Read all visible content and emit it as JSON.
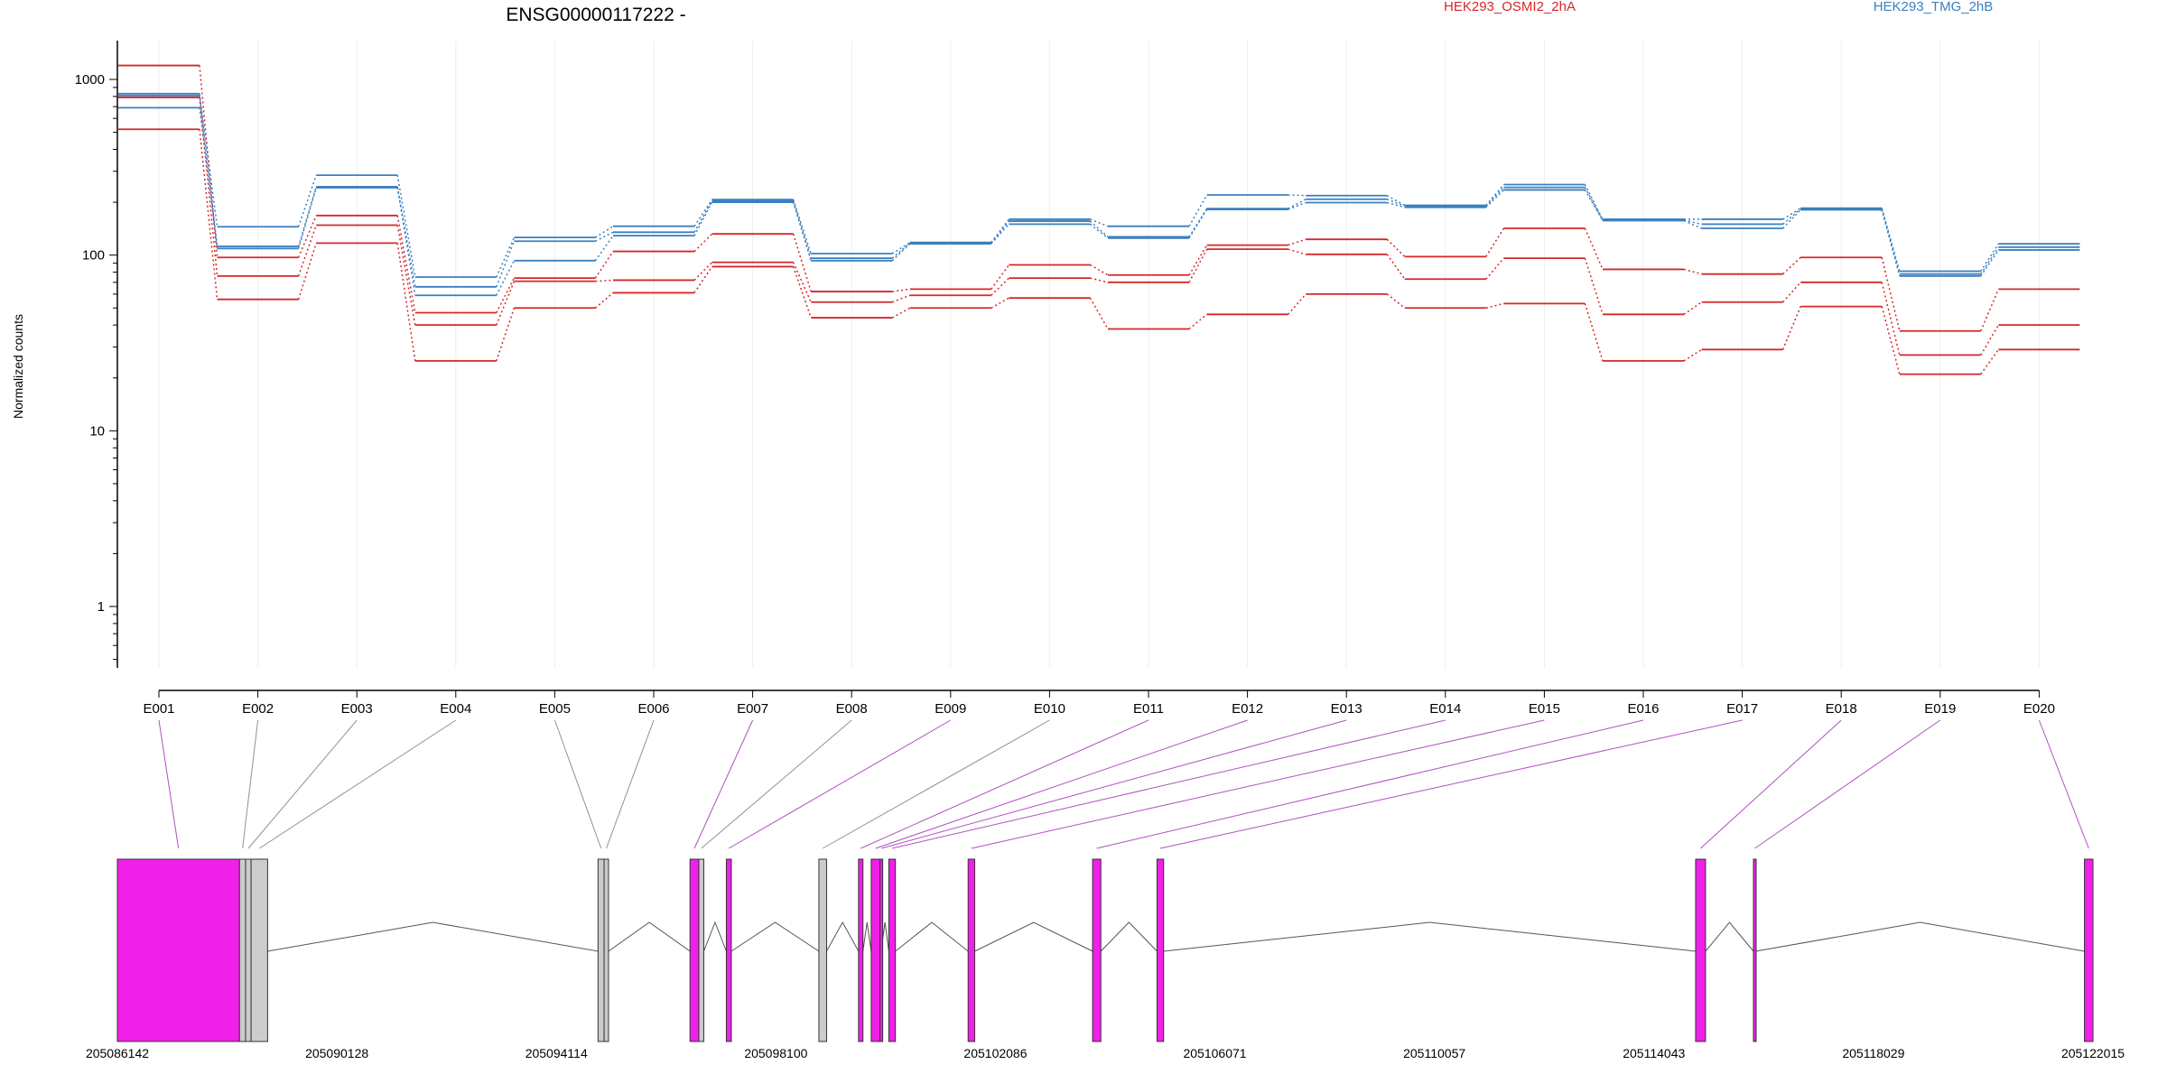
{
  "chart_data": {
    "type": "line",
    "title": "ENSG00000117222 -",
    "ylabel": "Normalized counts",
    "xlabel": "",
    "yscale": "log",
    "yticks": [
      1,
      10,
      100,
      1000
    ],
    "ylim": [
      0.5,
      1600
    ],
    "grid": "vertical-only",
    "legend_position": "top",
    "categories": [
      "E001",
      "E002",
      "E003",
      "E004",
      "E005",
      "E006",
      "E007",
      "E008",
      "E009",
      "E010",
      "E011",
      "E012",
      "E013",
      "E014",
      "E015",
      "E016",
      "E017",
      "E018",
      "E019",
      "E020"
    ],
    "groups": [
      {
        "name": "HEK293_OSMI2_2hA",
        "color": "#d62728"
      },
      {
        "name": "HEK293_TMG_2hB",
        "color": "#3a7fc0"
      }
    ],
    "series": [
      {
        "group": "HEK293_OSMI2_2hA",
        "values": [
          1200,
          97,
          168,
          47,
          74,
          105,
          132,
          62,
          64,
          88,
          77,
          114,
          123,
          98,
          142,
          83,
          78,
          97,
          37,
          64
        ]
      },
      {
        "group": "HEK293_OSMI2_2hA",
        "values": [
          790,
          76,
          148,
          40,
          71,
          72,
          91,
          54,
          59,
          74,
          70,
          108,
          101,
          73,
          96,
          46,
          54,
          70,
          27,
          40
        ]
      },
      {
        "group": "HEK293_OSMI2_2hA",
        "values": [
          520,
          56,
          117,
          25,
          50,
          61,
          86,
          44,
          50,
          57,
          38,
          46,
          60,
          50,
          53,
          25,
          29,
          51,
          21,
          29
        ]
      },
      {
        "group": "HEK293_TMG_2hB",
        "values": [
          830,
          145,
          285,
          75,
          126,
          146,
          207,
          102,
          118,
          160,
          146,
          220,
          218,
          192,
          252,
          160,
          160,
          185,
          81,
          116
        ]
      },
      {
        "group": "HEK293_TMG_2hB",
        "values": [
          810,
          112,
          245,
          66,
          120,
          135,
          203,
          96,
          117,
          156,
          127,
          184,
          208,
          190,
          243,
          158,
          150,
          183,
          78,
          111
        ]
      },
      {
        "group": "HEK293_TMG_2hB",
        "values": [
          690,
          109,
          242,
          59,
          93,
          129,
          200,
          93,
          116,
          150,
          125,
          182,
          199,
          187,
          235,
          157,
          142,
          181,
          76,
          107
        ]
      }
    ],
    "gene_model": {
      "coord_range": [
        205086142,
        205122015
      ],
      "coord_ticks": [
        "205086142",
        "205090128",
        "205094114",
        "205098100",
        "205102086",
        "205106071",
        "205110057",
        "205114043",
        "205118029",
        "205122015"
      ],
      "exons": [
        {
          "id": "E001",
          "start": 205086142,
          "end": 205088360,
          "status": "significant"
        },
        {
          "id": "E002",
          "start": 205088360,
          "end": 205088470,
          "status": "not-significant"
        },
        {
          "id": "E003",
          "start": 205088470,
          "end": 205088570,
          "status": "not-significant"
        },
        {
          "id": "E004",
          "start": 205088570,
          "end": 205088870,
          "status": "not-significant"
        },
        {
          "id": "E005",
          "start": 205094870,
          "end": 205094980,
          "status": "not-significant"
        },
        {
          "id": "E006",
          "start": 205094980,
          "end": 205095060,
          "status": "not-significant"
        },
        {
          "id": "E007",
          "start": 205096540,
          "end": 205096700,
          "status": "significant"
        },
        {
          "id": "E008",
          "start": 205096700,
          "end": 205096790,
          "status": "not-significant"
        },
        {
          "id": "E009",
          "start": 205097200,
          "end": 205097290,
          "status": "significant"
        },
        {
          "id": "E010",
          "start": 205098880,
          "end": 205099020,
          "status": "not-significant"
        },
        {
          "id": "E011",
          "start": 205099600,
          "end": 205099680,
          "status": "significant"
        },
        {
          "id": "E012",
          "start": 205099830,
          "end": 205099990,
          "status": "significant"
        },
        {
          "id": "E013",
          "start": 205099990,
          "end": 205100010,
          "status": "significant"
        },
        {
          "id": "E014",
          "start": 205100150,
          "end": 205100270,
          "status": "significant"
        },
        {
          "id": "E015",
          "start": 205101590,
          "end": 205101710,
          "status": "significant"
        },
        {
          "id": "E016",
          "start": 205103850,
          "end": 205104000,
          "status": "significant"
        },
        {
          "id": "E017",
          "start": 205105020,
          "end": 205105140,
          "status": "significant"
        },
        {
          "id": "E018",
          "start": 205114800,
          "end": 205114980,
          "status": "significant"
        },
        {
          "id": "E019",
          "start": 205115850,
          "end": 205115890,
          "status": "significant"
        },
        {
          "id": "E020",
          "start": 205121860,
          "end": 205122015,
          "status": "significant"
        }
      ]
    }
  },
  "colors": {
    "significant": "#f020e8",
    "not_significant": "#cccccc",
    "significant_connector": "#b050c0",
    "not_significant_connector": "#909090",
    "intron": "#555555",
    "grid": "#eeeeee",
    "axis": "#000000"
  }
}
